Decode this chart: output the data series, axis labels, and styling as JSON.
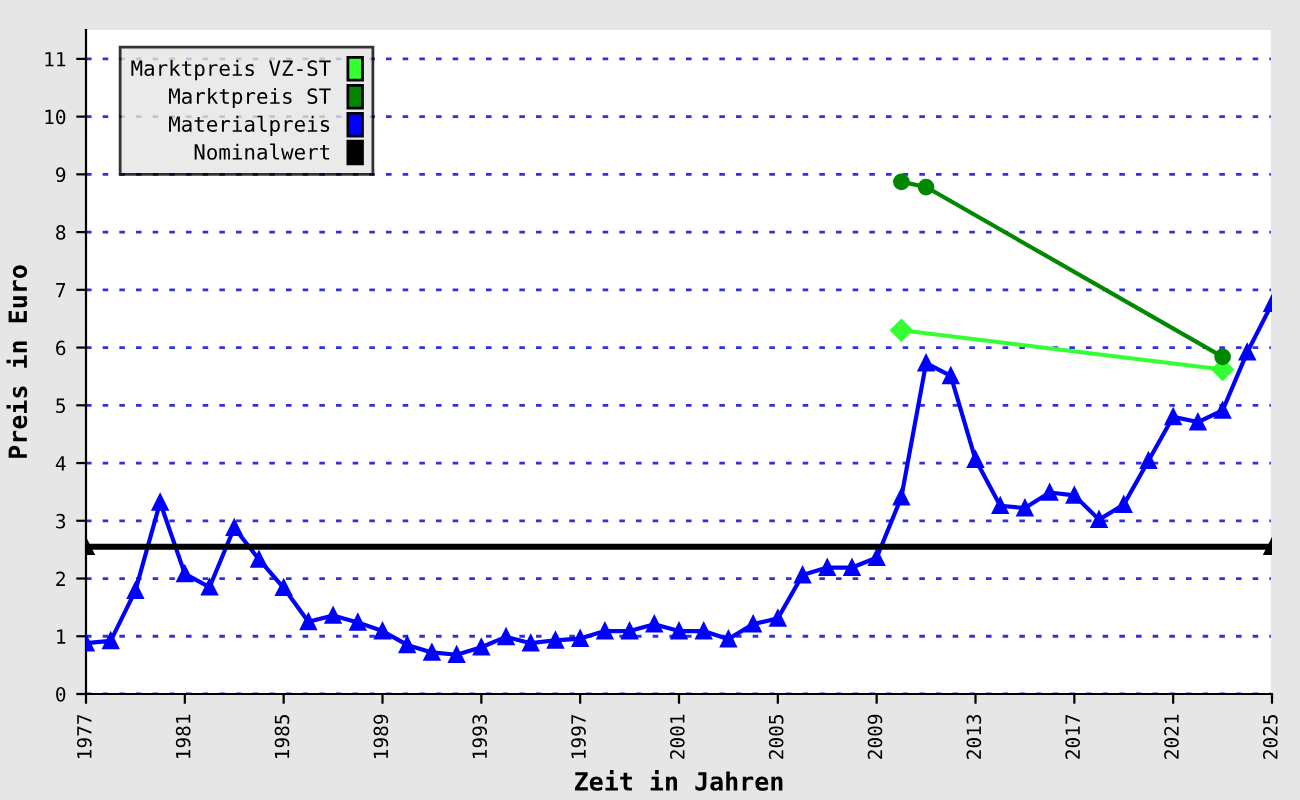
{
  "chart_data": {
    "type": "line",
    "xlabel": "Zeit in Jahren",
    "ylabel": "Preis in Euro",
    "xlim": [
      1977,
      2025
    ],
    "xticks": [
      1977,
      1981,
      1985,
      1989,
      1993,
      1997,
      2001,
      2005,
      2009,
      2013,
      2017,
      2021,
      2025
    ],
    "ylim": [
      0,
      11.5
    ],
    "yticks": [
      0,
      1,
      2,
      3,
      4,
      5,
      6,
      7,
      8,
      9,
      10,
      11
    ],
    "grid": "y",
    "legend": "top left",
    "series": [
      {
        "name": "Marktpreis VZ-ST",
        "color": "#33ff33",
        "marker": "diamond",
        "x": [
          2010,
          2023
        ],
        "values": [
          6.3,
          5.62
        ]
      },
      {
        "name": "Marktpreis ST",
        "color": "#008800",
        "marker": "circle",
        "x": [
          2010,
          2011,
          2023
        ],
        "values": [
          8.87,
          8.78,
          5.84
        ]
      },
      {
        "name": "Materialpreis",
        "color": "#0000ff",
        "marker": "triangle",
        "x": [
          1977,
          1978,
          1979,
          1980,
          1981,
          1982,
          1983,
          1984,
          1985,
          1986,
          1987,
          1988,
          1989,
          1990,
          1991,
          1992,
          1993,
          1994,
          1995,
          1996,
          1997,
          1998,
          1999,
          2000,
          2001,
          2002,
          2003,
          2004,
          2005,
          2006,
          2007,
          2008,
          2009,
          2010,
          2011,
          2012,
          2013,
          2014,
          2015,
          2016,
          2017,
          2018,
          2019,
          2020,
          2021,
          2022,
          2023,
          2024,
          2025
        ],
        "values": [
          0.88,
          0.92,
          1.79,
          3.32,
          2.08,
          1.85,
          2.88,
          2.33,
          1.84,
          1.25,
          1.36,
          1.24,
          1.09,
          0.85,
          0.72,
          0.68,
          0.81,
          0.99,
          0.88,
          0.93,
          0.96,
          1.09,
          1.09,
          1.21,
          1.09,
          1.09,
          0.95,
          1.21,
          1.31,
          2.06,
          2.19,
          2.19,
          2.36,
          3.41,
          5.73,
          5.51,
          4.06,
          3.26,
          3.22,
          3.49,
          3.44,
          3.02,
          3.28,
          4.04,
          4.8,
          4.71,
          4.91,
          5.92,
          6.76
        ]
      },
      {
        "name": "Nominalwert",
        "color": "#000000",
        "marker": "triangle",
        "x": [
          1977,
          2025
        ],
        "values": [
          2.55,
          2.55
        ]
      }
    ]
  }
}
